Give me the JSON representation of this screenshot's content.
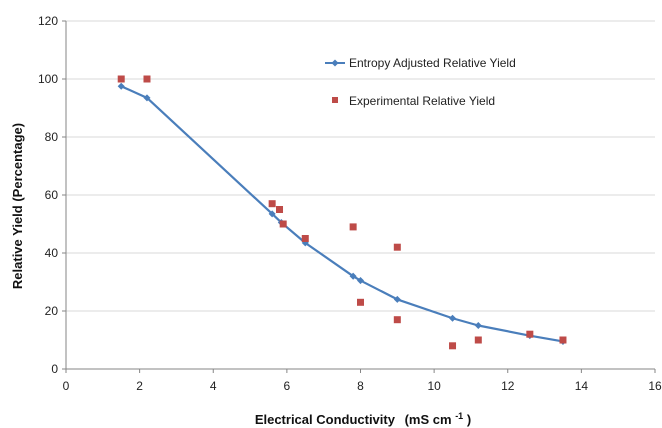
{
  "chart_data": {
    "type": "scatter",
    "title": "",
    "xlabel": "Electrical Conductivity",
    "xlabel_unit": "(mS cm",
    "xlabel_sup": "-1",
    "xlabel_close": ")",
    "ylabel": "Relative Yield  (Percentage)",
    "xlim": [
      0,
      16
    ],
    "ylim": [
      0,
      120
    ],
    "xticks": [
      0,
      2,
      4,
      6,
      8,
      10,
      12,
      14,
      16
    ],
    "yticks": [
      0,
      20,
      40,
      60,
      80,
      100,
      120
    ],
    "grid": "horizontal",
    "legend": "top-right",
    "series": [
      {
        "name": "Entropy Adjusted Relative Yield",
        "style": "line-with-diamond-markers",
        "color": "#4a7ebb",
        "x": [
          1.5,
          2.2,
          5.6,
          5.85,
          6.5,
          7.8,
          8.0,
          9.0,
          10.5,
          11.2,
          12.6,
          13.5
        ],
        "y": [
          97.5,
          93.5,
          53.5,
          50.5,
          43.5,
          32,
          30.5,
          24,
          17.5,
          15,
          11.5,
          9.5
        ]
      },
      {
        "name": "Experimental Relative Yield",
        "style": "square-markers",
        "color": "#be4b48",
        "x": [
          1.5,
          2.2,
          5.6,
          5.8,
          5.9,
          6.5,
          7.8,
          8.0,
          9.0,
          9.0,
          10.5,
          11.2,
          12.6,
          13.5
        ],
        "y": [
          100,
          100,
          57,
          55,
          50,
          45,
          49,
          23,
          42,
          17,
          8,
          10,
          12,
          10
        ]
      }
    ]
  }
}
